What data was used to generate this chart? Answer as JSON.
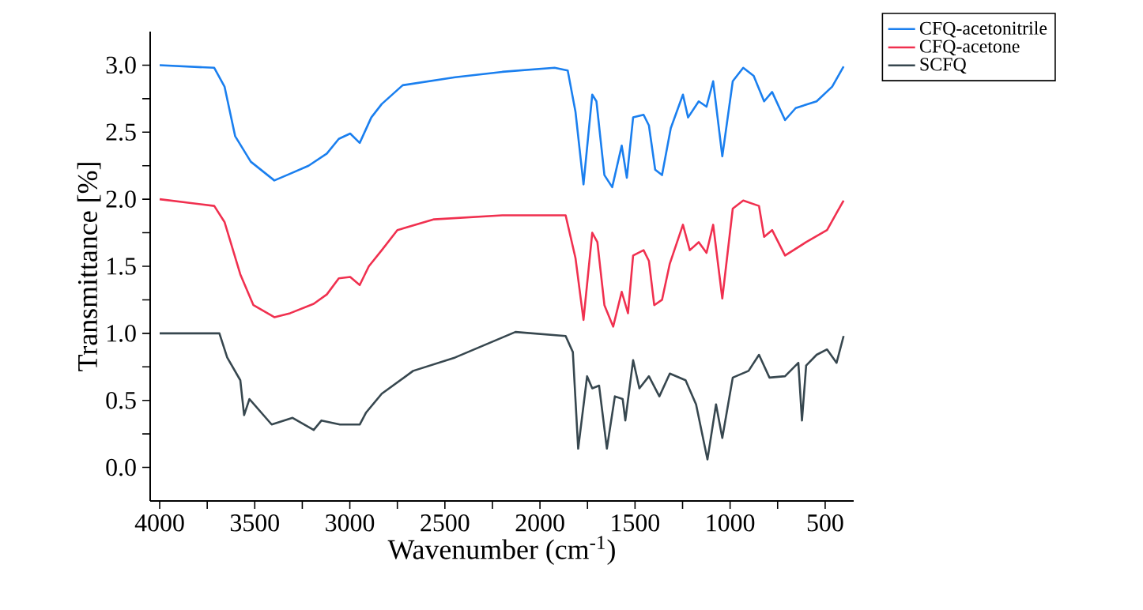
{
  "chart_data": {
    "type": "line",
    "xlabel": "Wavenumber (cm$^{-1}$)",
    "ylabel": "Transmittance [%]",
    "xlim": [
      4050,
      350
    ],
    "ylim": [
      -0.25,
      3.25
    ],
    "xticks": [
      4000,
      {
        "value": 3750,
        "label": null
      },
      3500,
      {
        "value": 3250,
        "label": null
      },
      3000,
      {
        "value": 2750,
        "label": null
      },
      2500,
      {
        "value": 2250,
        "label": null
      },
      2000,
      {
        "value": 1750,
        "label": null
      },
      1500,
      {
        "value": 1250,
        "label": null
      },
      1000,
      {
        "value": 750,
        "label": null
      },
      500
    ],
    "yticks": [
      {
        "value": 0,
        "label": "0.0"
      },
      {
        "value": 0.25,
        "label": null
      },
      0.5,
      {
        "value": 0.75,
        "label": null
      },
      {
        "value": 1,
        "label": "1.0"
      },
      {
        "value": 1.25,
        "label": null
      },
      1.5,
      {
        "value": 1.75,
        "label": null
      },
      {
        "value": 2,
        "label": "2.0"
      },
      {
        "value": 2.25,
        "label": null
      },
      2.5,
      {
        "value": 2.75,
        "label": null
      },
      {
        "value": 3,
        "label": "3.0"
      }
    ],
    "legend": "top right outside",
    "grid": false,
    "marker": "none",
    "line_style": "solid",
    "series": [
      {
        "name": "CFQ-acetonitrile",
        "color": "#1a7fef",
        "x": [
          4000,
          3713,
          3659,
          3603,
          3521,
          3397,
          3314,
          3217,
          3121,
          3058,
          2998,
          2948,
          2887,
          2832,
          2722,
          2446,
          2198,
          1923,
          1854,
          1813,
          1771,
          1725,
          1703,
          1661,
          1620,
          1570,
          1543,
          1510,
          1455,
          1427,
          1394,
          1358,
          1312,
          1248,
          1221,
          1165,
          1124,
          1089,
          1041,
          986,
          931,
          876,
          821,
          779,
          711,
          655,
          545,
          463,
          403
        ],
        "values": [
          3.0,
          2.98,
          2.84,
          2.47,
          2.28,
          2.14,
          2.19,
          2.25,
          2.34,
          2.45,
          2.49,
          2.42,
          2.61,
          2.71,
          2.85,
          2.91,
          2.95,
          2.98,
          2.96,
          2.65,
          2.11,
          2.78,
          2.73,
          2.18,
          2.09,
          2.4,
          2.16,
          2.61,
          2.63,
          2.55,
          2.22,
          2.18,
          2.53,
          2.78,
          2.61,
          2.73,
          2.69,
          2.88,
          2.32,
          2.88,
          2.98,
          2.92,
          2.73,
          2.8,
          2.59,
          2.68,
          2.73,
          2.84,
          2.99
        ]
      },
      {
        "name": "CFQ-acetone",
        "color": "#f0304f",
        "x": [
          4000,
          3713,
          3659,
          3576,
          3507,
          3397,
          3314,
          3190,
          3121,
          3058,
          2998,
          2948,
          2900,
          2832,
          2750,
          2557,
          2198,
          1865,
          1813,
          1771,
          1725,
          1698,
          1661,
          1615,
          1570,
          1537,
          1510,
          1455,
          1427,
          1399,
          1358,
          1317,
          1248,
          1212,
          1165,
          1124,
          1089,
          1041,
          986,
          931,
          848,
          821,
          779,
          711,
          600,
          490,
          435,
          403
        ],
        "values": [
          2.0,
          1.95,
          1.83,
          1.44,
          1.21,
          1.12,
          1.15,
          1.22,
          1.29,
          1.41,
          1.42,
          1.36,
          1.5,
          1.62,
          1.77,
          1.85,
          1.88,
          1.88,
          1.56,
          1.1,
          1.75,
          1.68,
          1.21,
          1.05,
          1.31,
          1.15,
          1.58,
          1.62,
          1.54,
          1.21,
          1.25,
          1.52,
          1.81,
          1.62,
          1.68,
          1.6,
          1.81,
          1.26,
          1.93,
          1.99,
          1.95,
          1.72,
          1.77,
          1.58,
          1.68,
          1.77,
          1.91,
          1.99
        ]
      },
      {
        "name": "SCFQ",
        "color": "#37474f",
        "x": [
          4000,
          3686,
          3645,
          3576,
          3556,
          3528,
          3411,
          3301,
          3190,
          3149,
          3052,
          2948,
          2914,
          2832,
          2667,
          2446,
          2129,
          1865,
          1827,
          1799,
          1752,
          1725,
          1689,
          1648,
          1606,
          1565,
          1551,
          1510,
          1477,
          1427,
          1372,
          1317,
          1234,
          1179,
          1119,
          1074,
          1041,
          986,
          903,
          848,
          793,
          711,
          641,
          622,
          600,
          545,
          490,
          440,
          403
        ],
        "values": [
          1.0,
          1.0,
          0.82,
          0.65,
          0.39,
          0.51,
          0.32,
          0.37,
          0.28,
          0.35,
          0.32,
          0.32,
          0.41,
          0.55,
          0.72,
          0.82,
          1.01,
          0.98,
          0.86,
          0.14,
          0.68,
          0.59,
          0.61,
          0.14,
          0.53,
          0.51,
          0.35,
          0.8,
          0.59,
          0.68,
          0.53,
          0.7,
          0.65,
          0.47,
          0.06,
          0.47,
          0.22,
          0.67,
          0.72,
          0.84,
          0.67,
          0.68,
          0.78,
          0.35,
          0.76,
          0.84,
          0.88,
          0.78,
          0.98
        ]
      }
    ]
  }
}
